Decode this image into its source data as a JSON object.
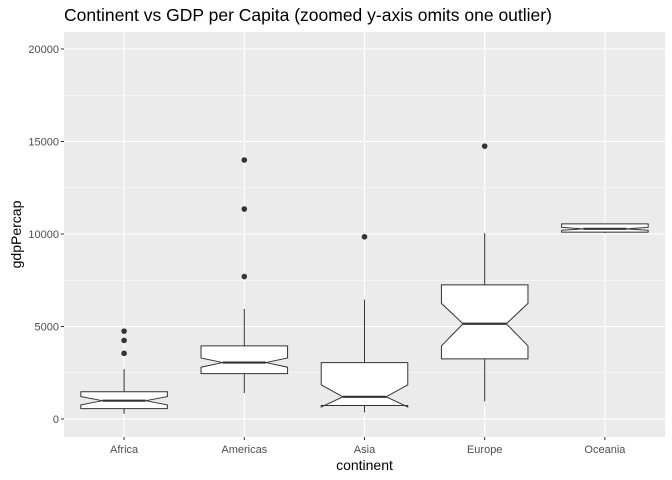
{
  "chart_data": {
    "type": "boxplot",
    "title": "Continent vs GDP per Capita (zoomed y-axis omits one outlier)",
    "xlabel": "continent",
    "ylabel": "gdpPercap",
    "categories": [
      "Africa",
      "Americas",
      "Asia",
      "Europe",
      "Oceania"
    ],
    "ylim": [
      -900,
      21000
    ],
    "yticks": [
      0,
      5000,
      10000,
      15000,
      20000
    ],
    "ytick_labels": [
      "0",
      "5000",
      "10000",
      "15000",
      "20000"
    ],
    "grid": true,
    "notched": true,
    "boxes": [
      {
        "category": "Africa",
        "whisker_low": 280,
        "q1": 560,
        "notch_low": 760,
        "median": 990,
        "notch_high": 1210,
        "q3": 1470,
        "whisker_high": 2700,
        "outliers": [
          3550,
          4250,
          4750
        ]
      },
      {
        "category": "Americas",
        "whisker_low": 1400,
        "q1": 2450,
        "notch_low": 2800,
        "median": 3050,
        "notch_high": 3300,
        "q3": 3950,
        "whisker_high": 5950,
        "outliers": [
          7700,
          11350,
          14000
        ]
      },
      {
        "category": "Asia",
        "whisker_low": 350,
        "q1": 730,
        "notch_low": 650,
        "median": 1200,
        "notch_high": 1850,
        "q3": 3050,
        "whisker_high": 6450,
        "outliers": [
          9850
        ]
      },
      {
        "category": "Europe",
        "whisker_low": 950,
        "q1": 3250,
        "notch_low": 3950,
        "median": 5150,
        "notch_high": 6250,
        "q3": 7250,
        "whisker_high": 10050,
        "outliers": [
          14750
        ]
      },
      {
        "category": "Oceania",
        "whisker_low": 10050,
        "q1": 10100,
        "notch_low": 10200,
        "median": 10280,
        "notch_high": 10360,
        "q3": 10550,
        "whisker_high": 10550,
        "outliers": []
      }
    ],
    "colors": {
      "panel": "#ebebeb",
      "grid": "#ffffff",
      "box_fill": "#ffffff",
      "box_line": "#333333",
      "point": "#333333"
    }
  }
}
